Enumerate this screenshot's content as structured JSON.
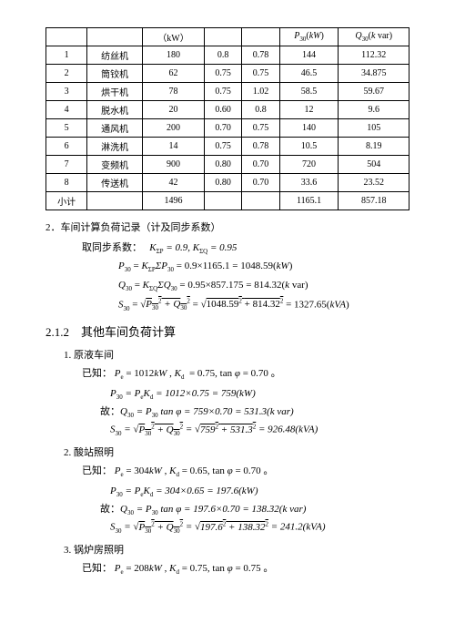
{
  "table": {
    "header": {
      "c3": "（kW）",
      "c6": "P₃₀(kW)",
      "c7": "Q₃₀(k var)"
    },
    "rows": [
      [
        "1",
        "纺丝机",
        "180",
        "0.8",
        "0.78",
        "144",
        "112.32"
      ],
      [
        "2",
        "筒铰机",
        "62",
        "0.75",
        "0.75",
        "46.5",
        "34.875"
      ],
      [
        "3",
        "烘干机",
        "78",
        "0.75",
        "1.02",
        "58.5",
        "59.67"
      ],
      [
        "4",
        "脱水机",
        "20",
        "0.60",
        "0.8",
        "12",
        "9.6"
      ],
      [
        "5",
        "通风机",
        "200",
        "0.70",
        "0.75",
        "140",
        "105"
      ],
      [
        "6",
        "淋洗机",
        "14",
        "0.75",
        "0.78",
        "10.5",
        "8.19"
      ],
      [
        "7",
        "变频机",
        "900",
        "0.80",
        "0.70",
        "720",
        "504"
      ],
      [
        "8",
        "传送机",
        "42",
        "0.80",
        "0.70",
        "33.6",
        "23.52"
      ],
      [
        "小计",
        "",
        "1496",
        "",
        "",
        "1165.1",
        "857.18"
      ]
    ]
  },
  "sec2": {
    "title": "2．车间计算负荷记录（计及同步系数）",
    "coef_label": "取同步系数：",
    "coef": "K_{ΣP} = 0.9, K_{ΣQ} = 0.95",
    "p30": "P₃₀ = K_{ΣP}ΣP₃₀ = 0.9×1165.1 = 1048.59(kW)",
    "q30": "Q₃₀ = K_{ΣQ}ΣQ₃₀ = 0.95×857.175 = 814.32(k var)",
    "s30": "S₃₀ = √(P₃₀² + Q₃₀²) = √(1048.59² + 814.32²) = 1327.65(kVA)"
  },
  "h212": "2.1.2　其他车间负荷计算",
  "item1": {
    "title": "1. 原液车间",
    "known": "已知： Pₑ = 1012kW , K_d = 0.75, tan φ = 0.70 。",
    "p30": "P₃₀ = PₑK_d = 1012×0.75 = 759(kW)",
    "q30": "故：Q₃₀ = P₃₀ tan φ = 759×0.70 = 531.3(k var)",
    "s30": "S₃₀ = √(P₃₀² + Q₃₀²) = √(759² + 531.3²) = 926.48(kVA)"
  },
  "item2": {
    "title": "2. 酸站照明",
    "known": "已知： Pₑ = 304kW , K_d = 0.65, tan φ = 0.70 。",
    "p30": "P₃₀ = PₑK_d = 304×0.65 = 197.6(kW)",
    "q30": "故：Q₃₀ = P₃₀ tan φ = 197.6×0.70 = 138.32(k var)",
    "s30": "S₃₀ = √(P₃₀² + Q₃₀²) = √(197.6² + 138.32²) = 241.2(kVA)"
  },
  "item3": {
    "title": "3. 锅炉房照明",
    "known": "已知： Pₑ = 208kW , K_d = 0.75, tan φ = 0.75 。"
  }
}
